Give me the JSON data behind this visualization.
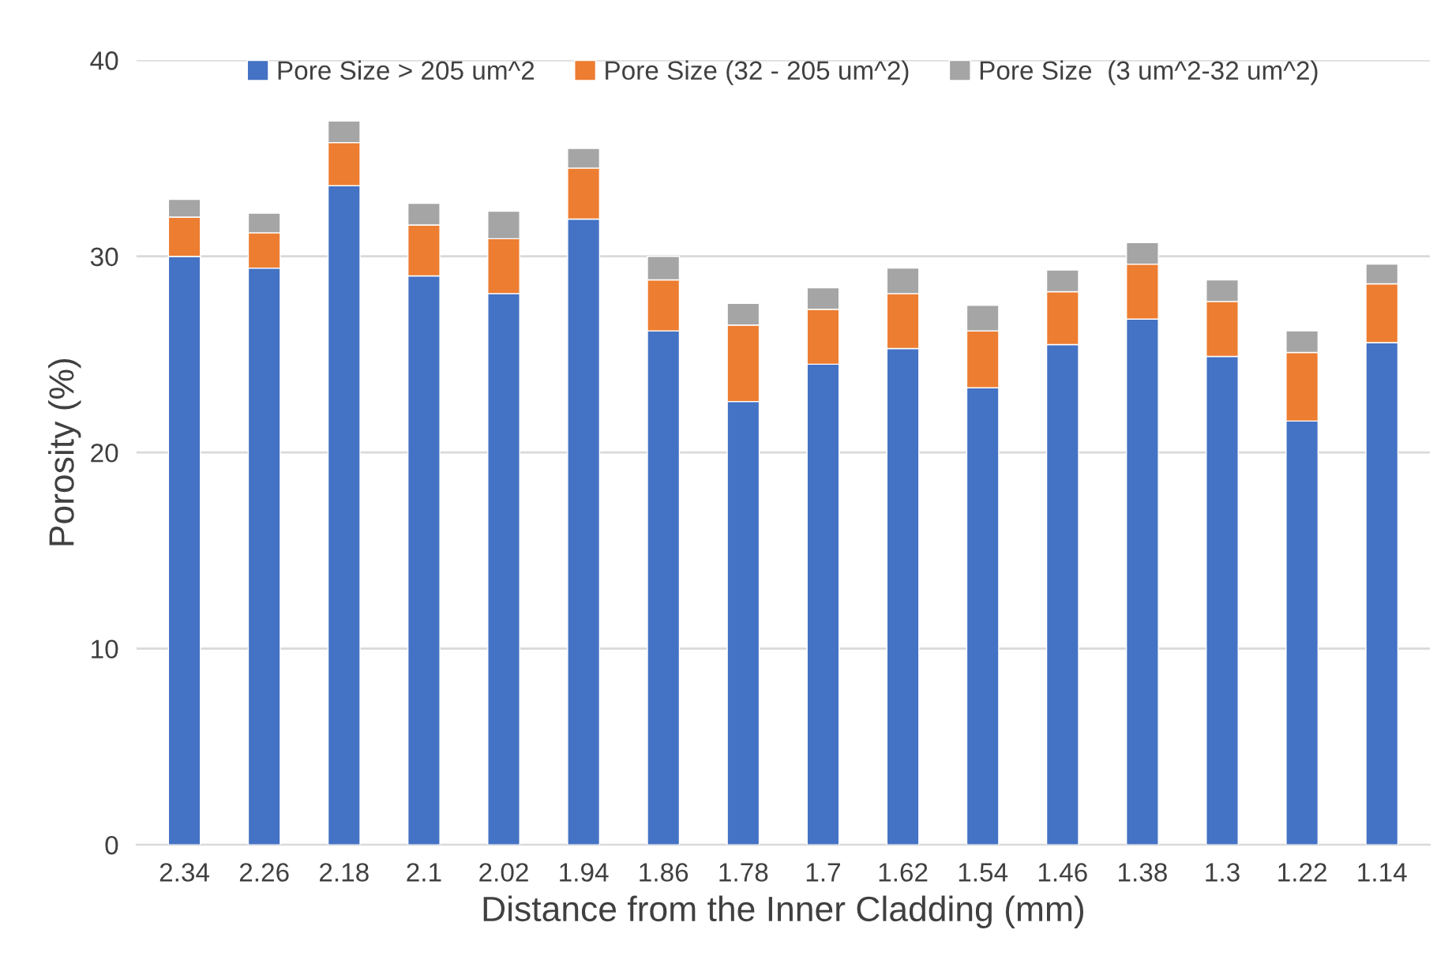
{
  "chart_data": {
    "type": "bar",
    "stacked": true,
    "xlabel": "Distance from the Inner Cladding (mm)",
    "ylabel": "Porosity (%)",
    "categories": [
      "2.34",
      "2.26",
      "2.18",
      "2.1",
      "2.02",
      "1.94",
      "1.86",
      "1.78",
      "1.7",
      "1.62",
      "1.54",
      "1.46",
      "1.38",
      "1.3",
      "1.22",
      "1.14"
    ],
    "series": [
      {
        "name": "Pore Size > 205 um^2",
        "color": "#4472c4",
        "values": [
          30.0,
          29.4,
          33.6,
          29.0,
          28.1,
          31.9,
          26.2,
          22.6,
          24.5,
          25.3,
          23.3,
          25.5,
          26.8,
          24.9,
          21.6,
          25.6
        ]
      },
      {
        "name": "Pore Size (32 - 205 um^2)",
        "color": "#ed7d31",
        "values": [
          2.0,
          1.8,
          2.2,
          2.6,
          2.8,
          2.6,
          2.6,
          3.9,
          2.8,
          2.8,
          2.9,
          2.7,
          2.8,
          2.8,
          3.5,
          3.0
        ]
      },
      {
        "name": "Pore Size  (3 um^2-32 um^2)",
        "color": "#a5a5a5",
        "values": [
          0.9,
          1.0,
          1.1,
          1.1,
          1.4,
          1.0,
          1.2,
          1.1,
          1.1,
          1.3,
          1.3,
          1.1,
          1.1,
          1.1,
          1.1,
          1.0
        ]
      }
    ],
    "ylim": [
      0,
      40
    ],
    "yticks": [
      0,
      10,
      20,
      30,
      40
    ],
    "grid": "y",
    "legend": "top"
  }
}
